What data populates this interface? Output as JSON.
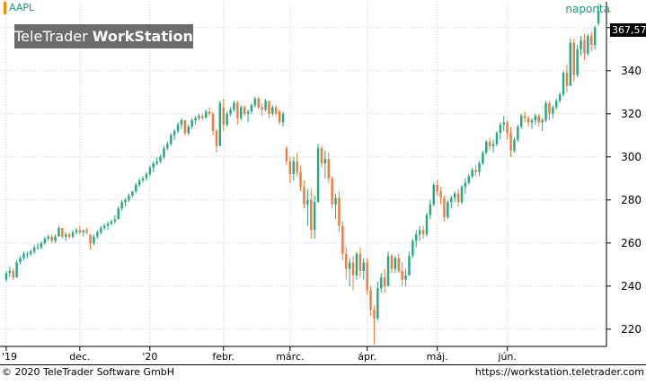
{
  "header": {
    "symbol": "AAPL",
    "period": "naponta",
    "brand_light": "TeleTrader ",
    "brand_bold": "WorkStation",
    "last_price": "367,57"
  },
  "footer": {
    "copyright": "© 2020 TeleTrader Software GmbH",
    "url": "https://workstation.teletrader.com"
  },
  "colors": {
    "up": "#22a884",
    "down": "#f07a3a",
    "grid": "#cfcfcf",
    "axis": "#000000",
    "text": "#000000",
    "accent": "#f08c00"
  },
  "chart_data": {
    "type": "candlestick",
    "title": "",
    "xlabel": "",
    "ylabel": "",
    "ylim": [
      212,
      372
    ],
    "y_ticks": [
      220,
      240,
      260,
      280,
      300,
      320,
      340,
      360
    ],
    "x_tick_labels": [
      {
        "label": "'19",
        "index": 0
      },
      {
        "label": "dec.",
        "index": 21
      },
      {
        "label": "'20",
        "index": 41
      },
      {
        "label": "febr.",
        "index": 62
      },
      {
        "label": "márc.",
        "index": 81
      },
      {
        "label": "ápr.",
        "index": 103
      },
      {
        "label": "máj.",
        "index": 123
      },
      {
        "label": "jún.",
        "index": 143
      }
    ],
    "grid": true,
    "ohlc": [
      [
        243,
        247,
        242,
        246
      ],
      [
        246,
        249,
        244,
        247
      ],
      [
        247,
        248,
        243,
        244
      ],
      [
        244,
        252,
        244,
        251
      ],
      [
        251,
        254,
        250,
        253
      ],
      [
        253,
        256,
        252,
        255
      ],
      [
        255,
        256,
        253,
        255
      ],
      [
        255,
        257,
        254,
        256
      ],
      [
        256,
        259,
        255,
        258
      ],
      [
        258,
        260,
        257,
        258
      ],
      [
        258,
        261,
        257,
        260
      ],
      [
        260,
        263,
        259,
        262
      ],
      [
        262,
        264,
        261,
        263
      ],
      [
        263,
        264,
        260,
        261
      ],
      [
        261,
        264,
        260,
        263
      ],
      [
        263,
        268,
        263,
        267
      ],
      [
        267,
        267,
        262,
        263
      ],
      [
        263,
        265,
        261,
        264
      ],
      [
        264,
        265,
        262,
        263
      ],
      [
        263,
        266,
        262,
        265
      ],
      [
        265,
        267,
        264,
        266
      ],
      [
        266,
        268,
        264,
        265
      ],
      [
        265,
        266,
        263,
        266
      ],
      [
        266,
        267,
        264,
        265
      ],
      [
        264,
        264,
        257,
        260
      ],
      [
        260,
        264,
        259,
        263
      ],
      [
        263,
        266,
        262,
        265
      ],
      [
        265,
        268,
        264,
        267
      ],
      [
        267,
        269,
        266,
        268
      ],
      [
        268,
        270,
        266,
        269
      ],
      [
        269,
        271,
        268,
        270
      ],
      [
        270,
        273,
        269,
        271
      ],
      [
        271,
        277,
        271,
        276
      ],
      [
        276,
        280,
        275,
        279
      ],
      [
        279,
        281,
        277,
        280
      ],
      [
        280,
        283,
        279,
        282
      ],
      [
        282,
        284,
        281,
        284
      ],
      [
        284,
        288,
        283,
        287
      ],
      [
        287,
        290,
        286,
        289
      ],
      [
        289,
        291,
        288,
        290
      ],
      [
        290,
        293,
        289,
        292
      ],
      [
        292,
        296,
        291,
        295
      ],
      [
        295,
        298,
        293,
        297
      ],
      [
        297,
        300,
        296,
        298
      ],
      [
        298,
        301,
        297,
        300
      ],
      [
        300,
        305,
        299,
        304
      ],
      [
        304,
        307,
        303,
        306
      ],
      [
        306,
        311,
        305,
        310
      ],
      [
        310,
        313,
        308,
        312
      ],
      [
        312,
        316,
        311,
        315
      ],
      [
        315,
        318,
        313,
        317
      ],
      [
        317,
        316,
        310,
        311
      ],
      [
        311,
        315,
        310,
        314
      ],
      [
        314,
        318,
        313,
        317
      ],
      [
        317,
        319,
        315,
        318
      ],
      [
        318,
        320,
        317,
        319
      ],
      [
        319,
        320,
        317,
        318
      ],
      [
        318,
        322,
        318,
        321
      ],
      [
        321,
        323,
        319,
        320
      ],
      [
        320,
        321,
        310,
        312
      ],
      [
        312,
        313,
        302,
        305
      ],
      [
        305,
        326,
        305,
        325
      ],
      [
        323,
        327,
        312,
        315
      ],
      [
        315,
        321,
        314,
        320
      ],
      [
        320,
        323,
        319,
        322
      ],
      [
        322,
        326,
        321,
        325
      ],
      [
        325,
        326,
        315,
        318
      ],
      [
        318,
        324,
        317,
        323
      ],
      [
        323,
        324,
        319,
        320
      ],
      [
        320,
        322,
        316,
        321
      ],
      [
        321,
        325,
        320,
        324
      ],
      [
        324,
        328,
        323,
        327
      ],
      [
        327,
        328,
        322,
        323
      ],
      [
        323,
        325,
        319,
        322
      ],
      [
        322,
        327,
        321,
        326
      ],
      [
        326,
        326,
        318,
        320
      ],
      [
        320,
        324,
        319,
        323
      ],
      [
        323,
        324,
        319,
        320
      ],
      [
        321,
        322,
        315,
        316
      ],
      [
        316,
        321,
        314,
        320
      ],
      [
        304,
        305,
        296,
        298
      ],
      [
        298,
        300,
        288,
        292
      ],
      [
        292,
        300,
        289,
        298
      ],
      [
        298,
        302,
        291,
        293
      ],
      [
        293,
        296,
        284,
        286
      ],
      [
        286,
        289,
        276,
        278
      ],
      [
        278,
        285,
        268,
        280
      ],
      [
        280,
        285,
        262,
        266
      ],
      [
        266,
        282,
        262,
        279
      ],
      [
        279,
        306,
        279,
        304
      ],
      [
        304,
        305,
        295,
        297
      ],
      [
        297,
        303,
        290,
        299
      ],
      [
        299,
        302,
        288,
        290
      ],
      [
        290,
        291,
        276,
        278
      ],
      [
        278,
        283,
        271,
        281
      ],
      [
        281,
        284,
        265,
        268
      ],
      [
        268,
        270,
        252,
        255
      ],
      [
        255,
        258,
        243,
        248
      ],
      [
        248,
        253,
        240,
        251
      ],
      [
        251,
        254,
        238,
        245
      ],
      [
        245,
        256,
        243,
        255
      ],
      [
        255,
        258,
        244,
        247
      ],
      [
        247,
        253,
        243,
        251
      ],
      [
        251,
        253,
        236,
        238
      ],
      [
        238,
        240,
        226,
        229
      ],
      [
        229,
        231,
        213,
        225
      ],
      [
        225,
        242,
        224,
        239
      ],
      [
        239,
        246,
        237,
        244
      ],
      [
        244,
        248,
        237,
        240
      ],
      [
        240,
        256,
        240,
        254
      ],
      [
        254,
        255,
        246,
        248
      ],
      [
        248,
        254,
        246,
        253
      ],
      [
        253,
        255,
        246,
        247
      ],
      [
        247,
        251,
        240,
        243
      ],
      [
        243,
        248,
        240,
        245
      ],
      [
        245,
        256,
        245,
        254
      ],
      [
        254,
        262,
        253,
        261
      ],
      [
        261,
        266,
        258,
        264
      ],
      [
        264,
        268,
        261,
        266
      ],
      [
        266,
        268,
        262,
        264
      ],
      [
        264,
        274,
        263,
        273
      ],
      [
        273,
        280,
        271,
        278
      ],
      [
        278,
        288,
        277,
        287
      ],
      [
        287,
        289,
        282,
        284
      ],
      [
        284,
        286,
        278,
        281
      ],
      [
        281,
        282,
        270,
        272
      ],
      [
        272,
        280,
        271,
        279
      ],
      [
        279,
        282,
        276,
        281
      ],
      [
        281,
        284,
        279,
        283
      ],
      [
        283,
        285,
        277,
        279
      ],
      [
        279,
        287,
        278,
        286
      ],
      [
        286,
        290,
        283,
        288
      ],
      [
        288,
        292,
        287,
        291
      ],
      [
        291,
        295,
        290,
        294
      ],
      [
        294,
        296,
        291,
        293
      ],
      [
        293,
        298,
        291,
        297
      ],
      [
        297,
        303,
        296,
        302
      ],
      [
        302,
        308,
        301,
        307
      ],
      [
        307,
        309,
        303,
        305
      ],
      [
        305,
        308,
        302,
        306
      ],
      [
        306,
        312,
        305,
        311
      ],
      [
        311,
        316,
        308,
        315
      ],
      [
        315,
        319,
        312,
        316
      ],
      [
        316,
        317,
        308,
        311
      ],
      [
        311,
        314,
        300,
        303
      ],
      [
        303,
        309,
        302,
        308
      ],
      [
        308,
        315,
        307,
        314
      ],
      [
        314,
        320,
        313,
        319
      ],
      [
        319,
        321,
        316,
        318
      ],
      [
        318,
        319,
        314,
        316
      ],
      [
        316,
        318,
        313,
        317
      ],
      [
        317,
        320,
        315,
        319
      ],
      [
        319,
        320,
        314,
        316
      ],
      [
        316,
        318,
        312,
        317
      ],
      [
        317,
        326,
        316,
        325
      ],
      [
        325,
        326,
        317,
        320
      ],
      [
        320,
        324,
        318,
        323
      ],
      [
        323,
        327,
        322,
        326
      ],
      [
        326,
        330,
        325,
        329
      ],
      [
        329,
        340,
        328,
        339
      ],
      [
        339,
        343,
        330,
        333
      ],
      [
        333,
        355,
        333,
        353
      ],
      [
        353,
        355,
        335,
        338
      ],
      [
        338,
        352,
        337,
        350
      ],
      [
        350,
        356,
        347,
        354
      ],
      [
        354,
        357,
        345,
        348
      ],
      [
        348,
        357,
        347,
        356
      ],
      [
        356,
        358,
        349,
        352
      ],
      [
        352,
        361,
        350,
        360
      ],
      [
        362,
        371,
        361,
        367.57
      ]
    ]
  }
}
